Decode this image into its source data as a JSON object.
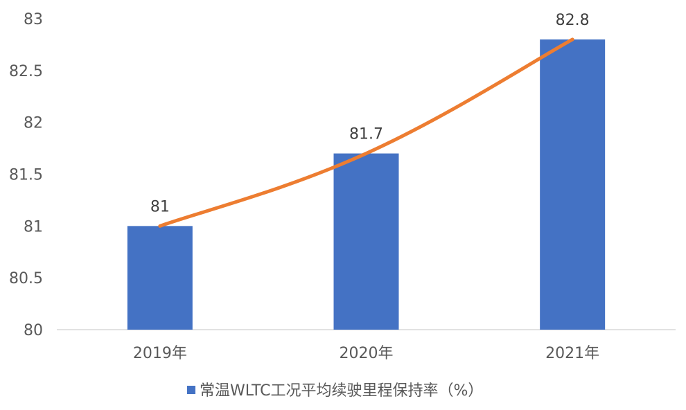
{
  "chart_data": {
    "type": "bar",
    "categories": [
      "2019年",
      "2020年",
      "2021年"
    ],
    "series": [
      {
        "name": "常温WLTC工况平均续驶里程保持率（%）",
        "type": "bar",
        "values": [
          81,
          81.7,
          82.8
        ]
      },
      {
        "type": "line",
        "values": [
          81,
          81.7,
          82.8
        ]
      }
    ],
    "data_labels": [
      "81",
      "81.7",
      "82.8"
    ],
    "y_ticks": [
      "80",
      "80.5",
      "81",
      "81.5",
      "82",
      "82.5",
      "83"
    ],
    "ylim": [
      80,
      83
    ],
    "grid": false,
    "legend": "bottom",
    "colors": {
      "bar": "#4472C4",
      "line": "#ED7D31",
      "axis": "#D9D9D9",
      "text": "#595959"
    }
  }
}
